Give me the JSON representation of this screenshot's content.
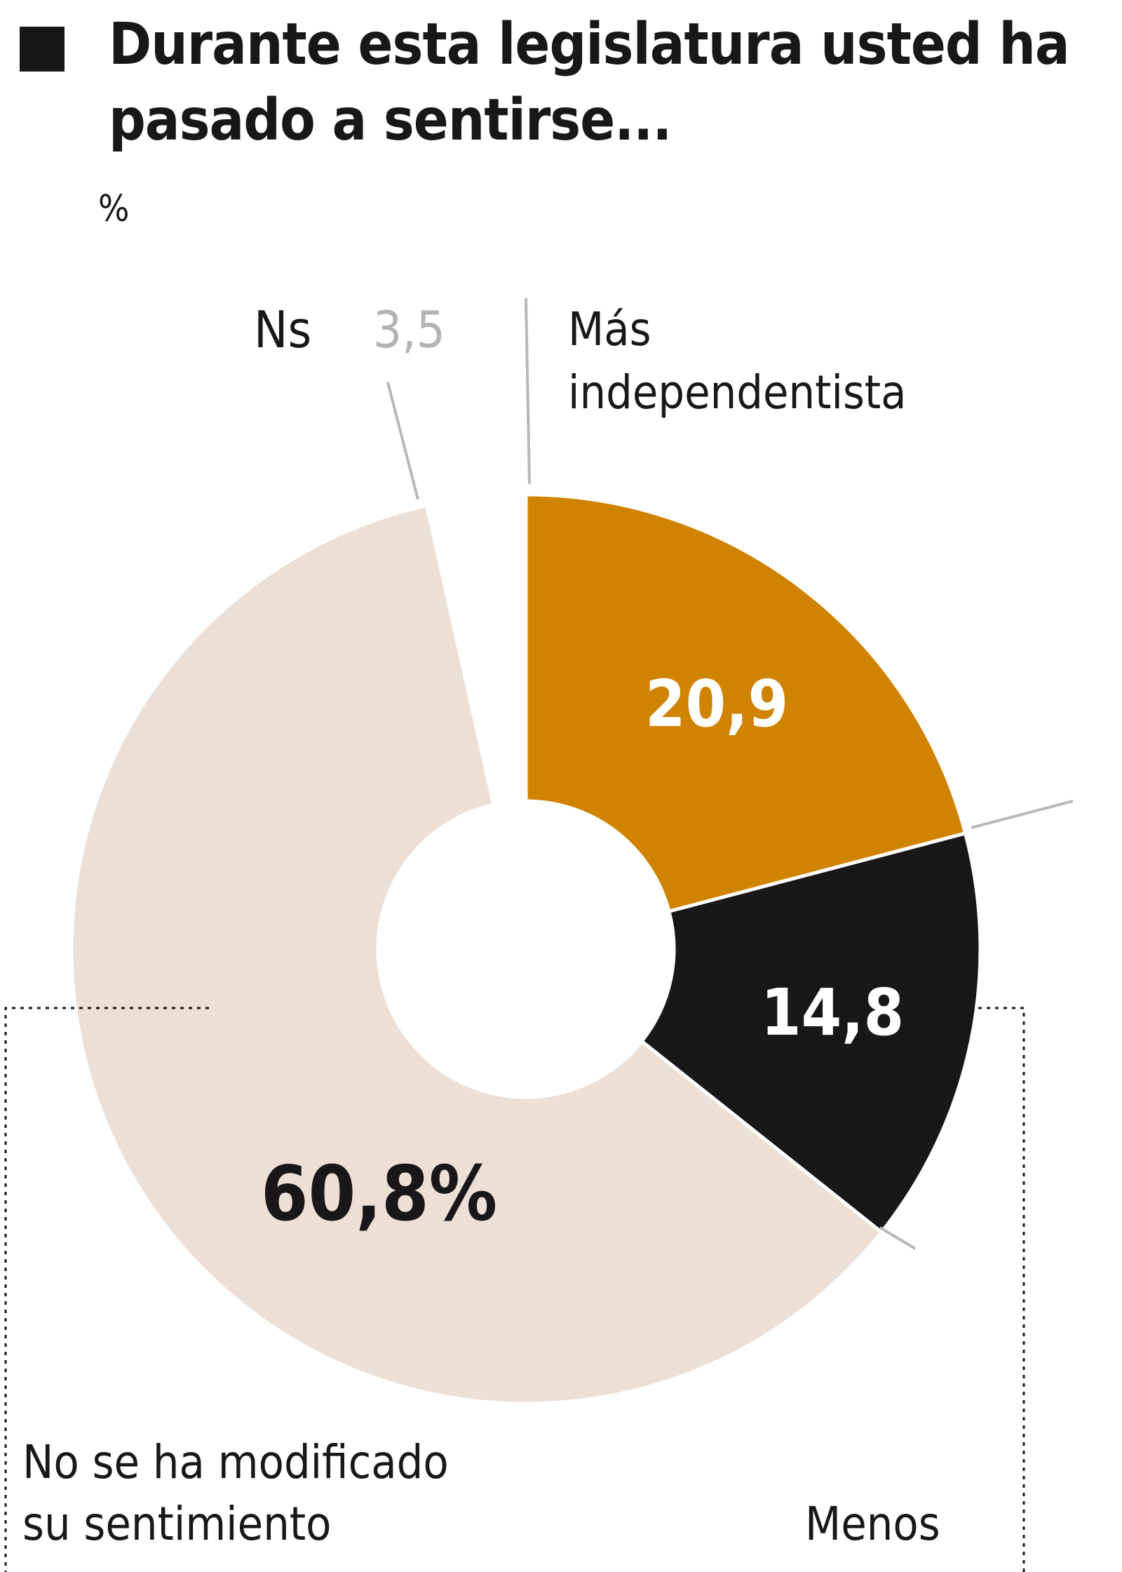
{
  "header": {
    "title": "Durante esta legislatura usted ha pasado a sentirse...",
    "unit": "%"
  },
  "labels": {
    "ns": "Ns",
    "ns_value": "3,5",
    "mas_line1": "Más",
    "mas_line2": "independentista",
    "mas_value": "20,9",
    "menos": "Menos",
    "menos_value": "14,8",
    "no_mod_line1": "No se ha modificado",
    "no_mod_line2": "su sentimiento",
    "no_mod_value": "60,8%"
  },
  "colors": {
    "mas": "#d08300",
    "menos": "#1a171b",
    "no_mod": "#ecdfd5",
    "ns": "#ffffff",
    "ns_text": "#b3b3b3",
    "leader": "#b8b8bc"
  },
  "chart_data": {
    "type": "pie",
    "title": "Durante esta legislatura usted ha pasado a sentirse...",
    "subtitle": "%",
    "donut": true,
    "categories": [
      "Más independentista",
      "Menos",
      "No se ha modificado su sentimiento",
      "Ns"
    ],
    "values": [
      20.9,
      14.8,
      60.8,
      3.5
    ],
    "value_labels": [
      "20,9",
      "14,8",
      "60,8%",
      "3,5"
    ],
    "colors": [
      "#d08300",
      "#1a171b",
      "#ecdfd5",
      "#ffffff"
    ],
    "start_angle_deg": 0,
    "direction": "clockwise"
  }
}
